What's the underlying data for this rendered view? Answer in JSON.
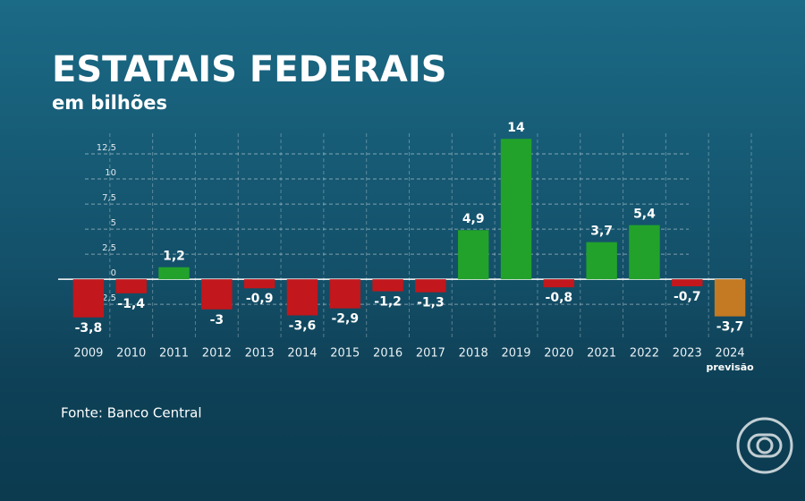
{
  "chart_data": {
    "type": "bar",
    "title": "ESTATAIS FEDERAIS",
    "subtitle": "em bilhões",
    "source": "Fonte: Banco Central",
    "annotation": "previsão",
    "categories": [
      "2009",
      "2010",
      "2011",
      "2012",
      "2013",
      "2014",
      "2015",
      "2016",
      "2017",
      "2018",
      "2019",
      "2020",
      "2021",
      "2022",
      "2023",
      "2024"
    ],
    "values": [
      -3.8,
      -1.4,
      1.2,
      -3,
      -0.9,
      -3.6,
      -2.9,
      -1.2,
      -1.3,
      4.9,
      14,
      -0.8,
      3.7,
      5.4,
      -0.7,
      -3.7
    ],
    "value_labels": [
      "-3,8",
      "-1,4",
      "1,2",
      "-3",
      "-0,9",
      "-3,6",
      "-2,9",
      "-1,2",
      "-1,3",
      "4,9",
      "14",
      "-0,8",
      "3,7",
      "5,4",
      "-0,7",
      "-3,7"
    ],
    "colors": [
      "#c2171c",
      "#c2171c",
      "#22a22a",
      "#c2171c",
      "#c2171c",
      "#c2171c",
      "#c2171c",
      "#c2171c",
      "#c2171c",
      "#22a22a",
      "#22a22a",
      "#c2171c",
      "#22a22a",
      "#22a22a",
      "#c2171c",
      "#c47a22"
    ],
    "ylim": [
      -4,
      15
    ],
    "yticks": [
      {
        "value": -2.5,
        "label": "-2,5"
      },
      0,
      {
        "value": 2.5,
        "label": "2,5"
      },
      5,
      {
        "value": 7.5,
        "label": "7,5"
      },
      10,
      {
        "value": 12.5,
        "label": "12,5"
      }
    ],
    "grid": true
  }
}
